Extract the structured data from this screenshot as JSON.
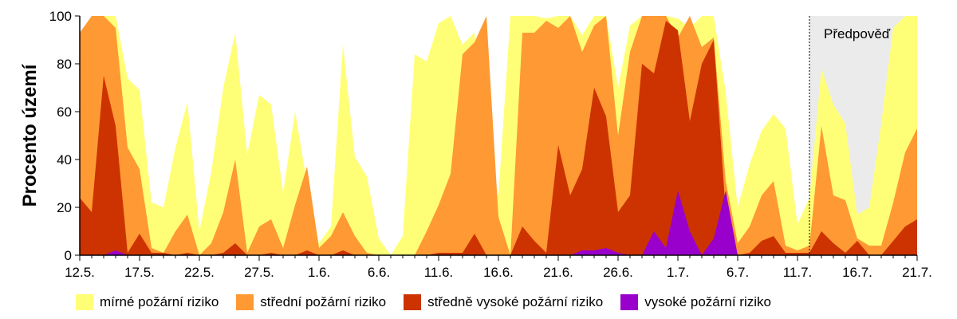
{
  "chart_data": {
    "type": "area",
    "stacked": false,
    "ylabel": "Procento území",
    "ylim": [
      0,
      100
    ],
    "yticks": [
      "0",
      "20",
      "40",
      "60",
      "80",
      "100"
    ],
    "xtick_labels": [
      "12.5.",
      "17.5.",
      "22.5.",
      "27.5.",
      "1.6.",
      "6.6.",
      "11.6.",
      "16.6.",
      "21.6.",
      "26.6.",
      "1.7.",
      "6.7.",
      "11.7.",
      "16.7.",
      "21.7."
    ],
    "forecast_label": "Předpověď",
    "forecast_start_day": 61,
    "days": 71,
    "series": [
      {
        "name": "mírné požární riziko",
        "color": "#FFFF77",
        "values": [
          91,
          93,
          100,
          100,
          74,
          69,
          22,
          20,
          45,
          64,
          10,
          35,
          70,
          93,
          42,
          67,
          63,
          26,
          60,
          30,
          5,
          12,
          88,
          41,
          33,
          7,
          0,
          8,
          84,
          81,
          97,
          100,
          88,
          93,
          36,
          25,
          100,
          100,
          100,
          99,
          100,
          100,
          92,
          100,
          100,
          70,
          96,
          100,
          100,
          100,
          99,
          95,
          100,
          100,
          68,
          20,
          38,
          52,
          59,
          53,
          13,
          24,
          78,
          63,
          55,
          17,
          20,
          55,
          95,
          100,
          100
        ]
      },
      {
        "name": "střední požární riziko",
        "color": "#FF9933",
        "values": [
          93,
          100,
          100,
          95,
          45,
          36,
          3,
          1,
          10,
          17,
          0,
          5,
          18,
          40,
          1,
          12,
          15,
          3,
          21,
          37,
          3,
          8,
          18,
          8,
          1,
          0,
          0,
          0,
          0,
          10,
          21,
          34,
          84,
          89,
          100,
          16,
          0,
          93,
          93,
          98,
          95,
          100,
          85,
          96,
          100,
          50,
          85,
          100,
          100,
          100,
          91,
          100,
          87,
          91,
          31,
          5,
          12,
          25,
          31,
          4,
          2,
          4,
          54,
          25,
          23,
          7,
          4,
          4,
          22,
          43,
          53
        ]
      },
      {
        "name": "středně vysoké požární riziko",
        "color": "#CC3300",
        "values": [
          24,
          18,
          75,
          54,
          1,
          9,
          1,
          1,
          0,
          1,
          0,
          0,
          1,
          5,
          0,
          0,
          1,
          0,
          0,
          2,
          0,
          0,
          2,
          0,
          0,
          0,
          0,
          0,
          0,
          0,
          1,
          1,
          1,
          9,
          0,
          0,
          0,
          12,
          6,
          1,
          46,
          25,
          36,
          70,
          58,
          18,
          25,
          80,
          76,
          98,
          94,
          56,
          80,
          90,
          18,
          0,
          1,
          6,
          8,
          1,
          1,
          1,
          10,
          5,
          1,
          6,
          0,
          0,
          6,
          12,
          15
        ]
      },
      {
        "name": "vysoké požární riziko",
        "color": "#9900CC",
        "values": [
          0,
          0,
          0,
          2,
          0,
          0,
          0,
          0,
          0,
          0,
          0,
          0,
          0,
          0,
          0,
          0,
          0,
          0,
          0,
          0,
          0,
          0,
          0,
          0,
          0,
          0,
          0,
          0,
          0,
          0,
          0,
          0,
          0,
          0,
          0,
          0,
          0,
          0,
          0,
          0,
          0,
          0,
          2,
          2,
          3,
          1,
          0,
          0,
          10,
          3,
          27,
          10,
          0,
          7,
          27,
          0,
          0,
          0,
          0,
          0,
          0,
          0,
          0,
          0,
          0,
          0,
          0,
          0,
          0,
          0,
          0
        ]
      }
    ]
  }
}
